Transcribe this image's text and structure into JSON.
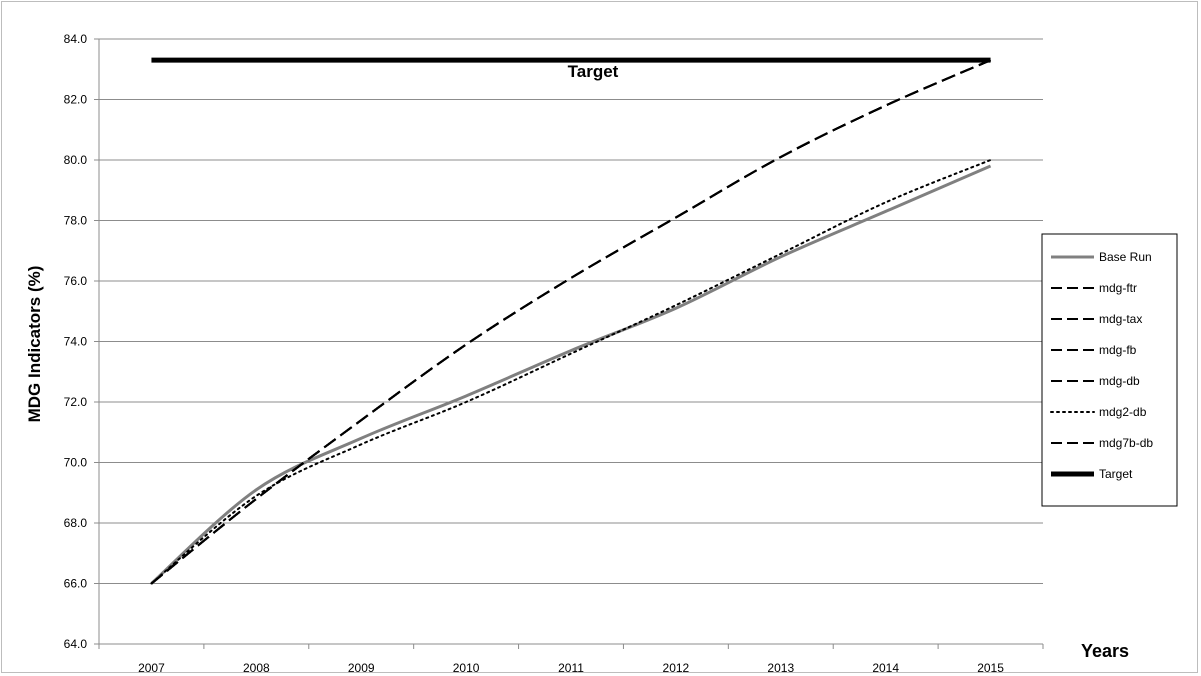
{
  "chart_data": {
    "type": "line",
    "title": "",
    "xlabel": "Years",
    "ylabel": "MDG Indicators (%)",
    "ylim": [
      64.0,
      84.0
    ],
    "y_ticks": [
      "64.0",
      "66.0",
      "68.0",
      "70.0",
      "72.0",
      "74.0",
      "76.0",
      "78.0",
      "80.0",
      "82.0",
      "84.0"
    ],
    "categories": [
      "2007",
      "2008",
      "2009",
      "2010",
      "2011",
      "2012",
      "2013",
      "2014",
      "2015"
    ],
    "grid": "horizontal",
    "legend_position": "right",
    "annotations": [
      {
        "text": "Target",
        "attached_to": "Target"
      }
    ],
    "series": [
      {
        "name": "Base Run",
        "values": [
          66.0,
          69.1,
          70.8,
          72.2,
          73.7,
          75.1,
          76.8,
          78.3,
          79.8
        ],
        "color": "#808080",
        "style": "solid",
        "width": 3
      },
      {
        "name": "mdg-ftr",
        "values": [
          66.0,
          68.8,
          71.4,
          73.9,
          76.1,
          78.1,
          80.1,
          81.8,
          83.3
        ],
        "color": "#000000",
        "style": "dashed",
        "width": 2
      },
      {
        "name": "mdg-tax",
        "values": [
          66.0,
          68.8,
          71.4,
          73.9,
          76.1,
          78.1,
          80.1,
          81.8,
          83.3
        ],
        "color": "#000000",
        "style": "dashed",
        "width": 2
      },
      {
        "name": "mdg-fb",
        "values": [
          66.0,
          68.8,
          71.4,
          73.9,
          76.1,
          78.1,
          80.1,
          81.8,
          83.3
        ],
        "color": "#000000",
        "style": "dashed",
        "width": 2
      },
      {
        "name": "mdg-db",
        "values": [
          66.0,
          68.8,
          71.4,
          73.9,
          76.1,
          78.1,
          80.1,
          81.8,
          83.3
        ],
        "color": "#000000",
        "style": "dashed",
        "width": 2
      },
      {
        "name": "mdg2-db",
        "values": [
          66.0,
          68.9,
          70.6,
          72.0,
          73.6,
          75.2,
          76.9,
          78.6,
          80.0
        ],
        "color": "#000000",
        "style": "dotted",
        "width": 2
      },
      {
        "name": "mdg7b-db",
        "values": [
          66.0,
          68.8,
          71.4,
          73.9,
          76.1,
          78.1,
          80.1,
          81.8,
          83.3
        ],
        "color": "#000000",
        "style": "dashed",
        "width": 2
      },
      {
        "name": "Target",
        "values": [
          83.3,
          83.3,
          83.3,
          83.3,
          83.3,
          83.3,
          83.3,
          83.3,
          83.3
        ],
        "color": "#000000",
        "style": "solid",
        "width": 5
      }
    ]
  }
}
